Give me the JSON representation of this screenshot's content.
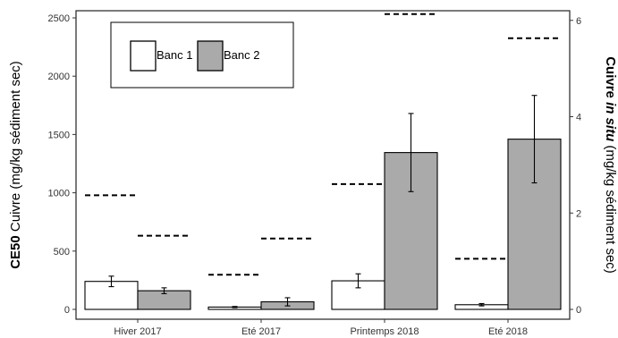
{
  "chart_data": {
    "type": "bar",
    "categories": [
      "Hiver 2017",
      "Eté 2017",
      "Printemps 2018",
      "Eté 2018"
    ],
    "series": [
      {
        "name": "Banc 1",
        "color": "#ffffff",
        "values": [
          240,
          20,
          245,
          40
        ],
        "errors": [
          45,
          5,
          60,
          10
        ]
      },
      {
        "name": "Banc 2",
        "color": "#aaaaaa",
        "values": [
          160,
          65,
          1345,
          1460
        ],
        "errors": [
          25,
          35,
          335,
          375
        ]
      }
    ],
    "right_axis_series": {
      "style": "dashed",
      "banc1": [
        2.37,
        0.72,
        2.6,
        1.05
      ],
      "banc2": [
        1.53,
        1.47,
        6.13,
        5.63
      ]
    },
    "ylabel_left": {
      "bold": "CE50",
      "rest": " Cuivre (mg/kg sédiment sec)"
    },
    "ylabel_right": {
      "bold": "Cuivre ",
      "italic": "in situ",
      "rest": " (mg/kg sédiment sec)"
    },
    "ylim_left": [
      0,
      2500
    ],
    "yticks_left": [
      0,
      500,
      1000,
      1500,
      2000,
      2500
    ],
    "ylim_right": [
      0,
      6.2
    ],
    "yticks_right": [
      0,
      2,
      4,
      6
    ],
    "grid": false,
    "legend": {
      "position": "top-left",
      "entries": [
        "Banc 1",
        "Banc 2"
      ]
    }
  }
}
